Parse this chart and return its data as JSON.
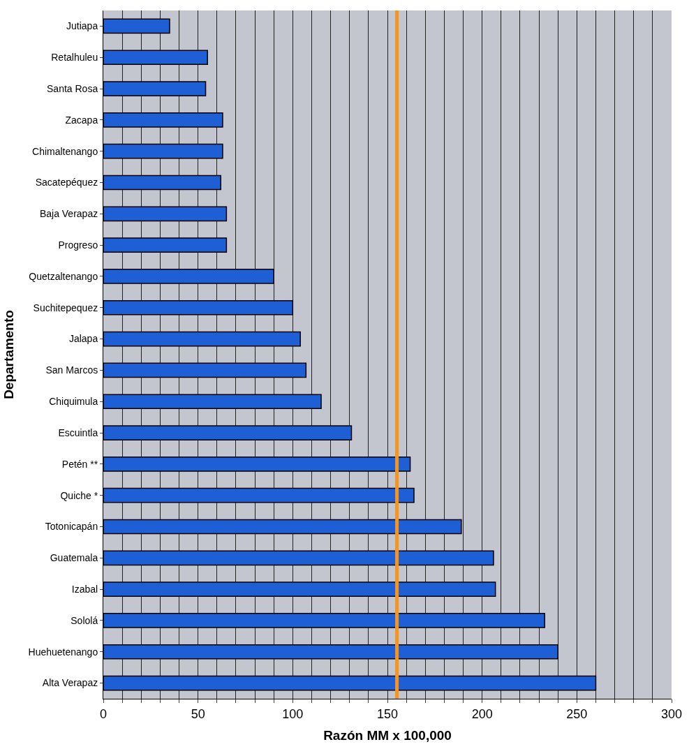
{
  "chart_data": {
    "type": "bar",
    "orientation": "horizontal",
    "xlabel": "Razón MM x 100,000",
    "ylabel": "Departamento",
    "categories": [
      "Jutiapa",
      "Retalhuleu",
      "Santa Rosa",
      "Zacapa",
      "Chimaltenango",
      "Sacatepéquez",
      "Baja Verapaz",
      "Progreso",
      "Quetzaltenango",
      "Suchitepequez",
      "Jalapa",
      "San Marcos",
      "Chiquimula",
      "Escuintla",
      "Petén **",
      "Quiche *",
      "Totonicapán",
      "Guatemala",
      "Izabal",
      "Sololá",
      "Huehuetenango",
      "Alta Verapaz"
    ],
    "values": [
      35,
      55,
      54,
      63,
      63,
      62,
      65,
      65,
      90,
      100,
      104,
      107,
      115,
      131,
      162,
      164,
      189,
      206,
      207,
      233,
      240,
      260
    ],
    "color": "#1f5fd6",
    "xlim": [
      0,
      300
    ],
    "xticks": [
      0,
      {
        "value": 10,
        "label": null
      },
      {
        "value": 20,
        "label": null
      },
      {
        "value": 30,
        "label": null
      },
      {
        "value": 40,
        "label": null
      },
      50,
      {
        "value": 60,
        "label": null
      },
      {
        "value": 70,
        "label": null
      },
      {
        "value": 80,
        "label": null
      },
      {
        "value": 90,
        "label": null
      },
      100,
      {
        "value": 110,
        "label": null
      },
      {
        "value": 120,
        "label": null
      },
      {
        "value": 130,
        "label": null
      },
      {
        "value": 140,
        "label": null
      },
      150,
      {
        "value": 160,
        "label": null
      },
      {
        "value": 170,
        "label": null
      },
      {
        "value": 180,
        "label": null
      },
      {
        "value": 190,
        "label": null
      },
      200,
      {
        "value": 210,
        "label": null
      },
      {
        "value": 220,
        "label": null
      },
      {
        "value": 230,
        "label": null
      },
      {
        "value": 240,
        "label": null
      },
      250,
      {
        "value": 260,
        "label": null
      },
      {
        "value": 270,
        "label": null
      },
      {
        "value": 280,
        "label": null
      },
      {
        "value": 290,
        "label": null
      },
      300
    ],
    "grid": "x",
    "ref_lines": [
      {
        "axis": "x",
        "value": 155,
        "color": "#f7941d",
        "line_style": "solid"
      }
    ]
  }
}
